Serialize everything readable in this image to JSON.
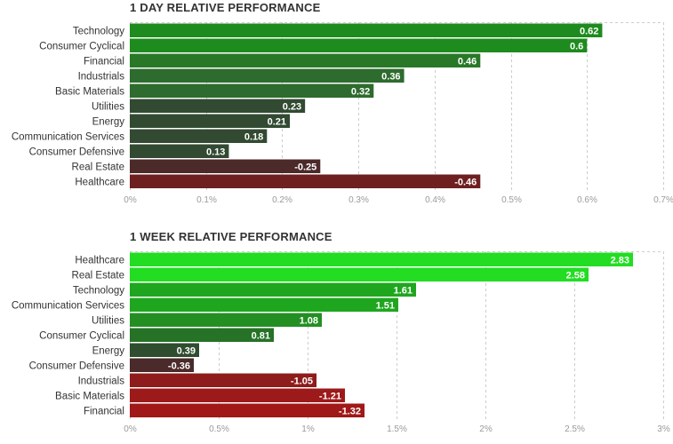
{
  "chart_data": [
    {
      "type": "bar",
      "orientation": "horizontal",
      "title": "1 DAY RELATIVE PERFORMANCE",
      "categories": [
        "Technology",
        "Consumer Cyclical",
        "Financial",
        "Industrials",
        "Basic Materials",
        "Utilities",
        "Energy",
        "Communication Services",
        "Consumer Defensive",
        "Real Estate",
        "Healthcare"
      ],
      "values": [
        0.62,
        0.6,
        0.46,
        0.36,
        0.32,
        0.23,
        0.21,
        0.18,
        0.13,
        -0.25,
        -0.46
      ],
      "value_labels": [
        "0.62",
        "0.6",
        "0.46",
        "0.36",
        "0.32",
        "0.23",
        "0.21",
        "0.18",
        "0.13",
        "-0.25",
        "-0.46"
      ],
      "colors": [
        "#1e8b1e",
        "#1e8b1e",
        "#287828",
        "#2e6b2e",
        "#2e6b2e",
        "#324a32",
        "#324a32",
        "#324a32",
        "#324a32",
        "#4c2a2a",
        "#6e2020"
      ],
      "xlim": [
        0,
        0.7
      ],
      "xticks": [
        0,
        0.1,
        0.2,
        0.3,
        0.4,
        0.5,
        0.6,
        0.7
      ],
      "xtick_labels": [
        "0%",
        "0.1%",
        "0.2%",
        "0.3%",
        "0.4%",
        "0.5%",
        "0.6%",
        "0.7%"
      ],
      "bar_extent": "absolute value",
      "grid": true
    },
    {
      "type": "bar",
      "orientation": "horizontal",
      "title": "1 WEEK RELATIVE PERFORMANCE",
      "categories": [
        "Healthcare",
        "Real Estate",
        "Technology",
        "Communication Services",
        "Utilities",
        "Consumer Cyclical",
        "Energy",
        "Consumer Defensive",
        "Industrials",
        "Basic Materials",
        "Financial"
      ],
      "values": [
        2.83,
        2.58,
        1.61,
        1.51,
        1.08,
        0.81,
        0.39,
        -0.36,
        -1.05,
        -1.21,
        -1.32
      ],
      "value_labels": [
        "2.83",
        "2.58",
        "1.61",
        "1.51",
        "1.08",
        "0.81",
        "0.39",
        "-0.36",
        "-1.05",
        "-1.21",
        "-1.32"
      ],
      "colors": [
        "#22dd22",
        "#22dd22",
        "#1fa61f",
        "#1fa61f",
        "#238f23",
        "#267226",
        "#2f4d2f",
        "#4a2a2a",
        "#8e1c1c",
        "#9c1a1a",
        "#a01818"
      ],
      "xlim": [
        0,
        3
      ],
      "xticks": [
        0,
        0.5,
        1,
        1.5,
        2,
        2.5,
        3
      ],
      "xtick_labels": [
        "0%",
        "0.5%",
        "1%",
        "1.5%",
        "2%",
        "2.5%",
        "3%"
      ],
      "bar_extent": "absolute value",
      "grid": true
    }
  ]
}
